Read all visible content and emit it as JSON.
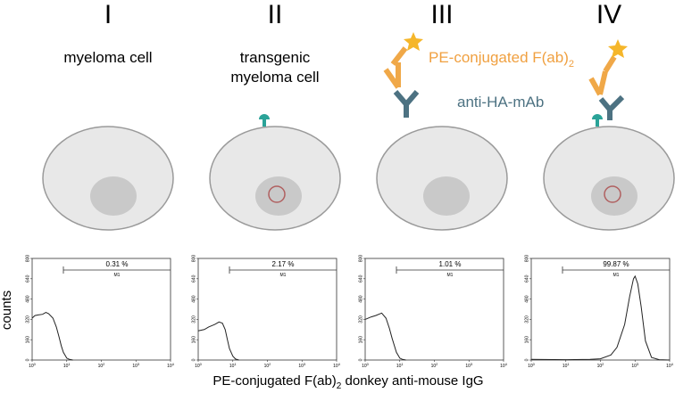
{
  "panels": [
    {
      "numeral": "I",
      "label": [
        "myeloma cell"
      ]
    },
    {
      "numeral": "II",
      "label": [
        "transgenic",
        "myeloma cell"
      ]
    },
    {
      "numeral": "III",
      "label": []
    },
    {
      "numeral": "IV",
      "label": []
    }
  ],
  "legend": {
    "pe": "PE-conjugated F(ab)",
    "pe_sub": "2",
    "anti": "anti-HA-mAb"
  },
  "axes": {
    "ylabel": "counts",
    "xlabel": "PE-conjugated F(ab)",
    "xlabel_sub": "2",
    "xlabel_rest": " donkey anti-mouse IgG",
    "xlim": [
      1,
      10000
    ],
    "xscale": "log",
    "xticks": [
      {
        "value": 1,
        "label": "10",
        "power": "0"
      },
      {
        "value": 10,
        "label": "10",
        "power": "1"
      },
      {
        "value": 100,
        "label": "10",
        "power": "2"
      },
      {
        "value": 1000,
        "label": "10",
        "power": "3"
      },
      {
        "value": 10000,
        "label": "10",
        "power": "4"
      }
    ],
    "ylim": [
      0,
      800
    ],
    "yticks": [
      0,
      160,
      320,
      480,
      640,
      800
    ]
  },
  "histograms": [
    {
      "type": "line",
      "percent": "0.31 %",
      "gate": "M1",
      "gate_start": 8,
      "x": [
        1,
        1.2,
        1.5,
        2,
        2.5,
        3,
        4,
        5,
        6,
        7,
        8,
        10,
        12,
        15
      ],
      "values": [
        330,
        350,
        355,
        360,
        375,
        365,
        330,
        260,
        180,
        110,
        60,
        15,
        5,
        0
      ]
    },
    {
      "type": "line",
      "percent": "2.17 %",
      "gate": "M1",
      "gate_start": 8,
      "x": [
        1,
        1.5,
        2,
        3,
        4,
        5,
        6,
        7,
        8,
        10,
        12,
        15
      ],
      "values": [
        230,
        240,
        260,
        280,
        300,
        290,
        240,
        160,
        90,
        30,
        8,
        0
      ]
    },
    {
      "type": "line",
      "percent": "1.01 %",
      "gate": "M1",
      "gate_start": 8,
      "x": [
        1,
        1.5,
        2,
        3,
        4,
        5,
        6,
        8,
        10,
        12,
        15
      ],
      "values": [
        320,
        340,
        350,
        370,
        330,
        250,
        170,
        60,
        15,
        5,
        0
      ]
    },
    {
      "type": "line",
      "percent": "99.87 %",
      "gate": "M1",
      "gate_start": 8,
      "x": [
        1,
        10,
        50,
        100,
        200,
        300,
        500,
        700,
        900,
        1000,
        1200,
        1500,
        2000,
        3000,
        5000,
        10000
      ],
      "values": [
        5,
        3,
        5,
        10,
        40,
        100,
        280,
        500,
        640,
        660,
        600,
        420,
        150,
        20,
        3,
        0
      ]
    }
  ]
}
